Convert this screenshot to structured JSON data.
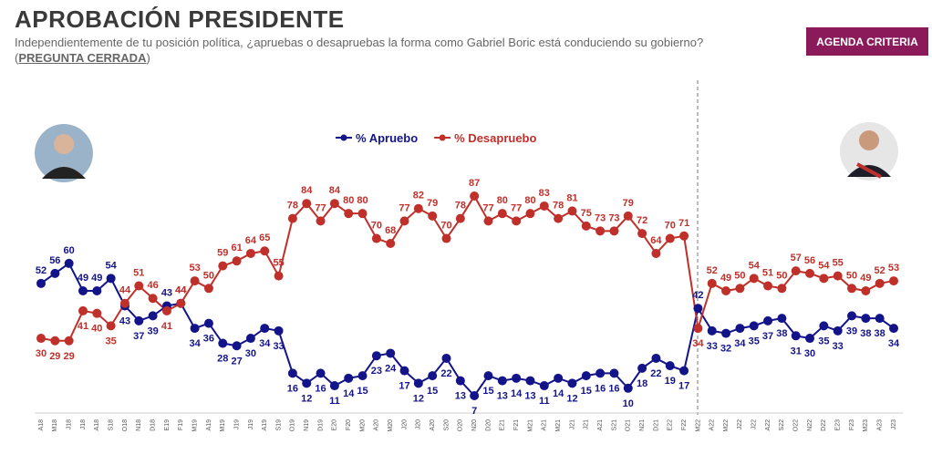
{
  "chart_data": {
    "type": "line",
    "title": "APROBACIÓN PRESIDENTE",
    "subtitle": "Independientemente de tu posición política, ¿apruebas o desapruebas la forma como Gabriel Boric está conduciendo su gobierno? (",
    "subtitle_emphasis": "PREGUNTA CERRADA",
    "subtitle_end": ")",
    "categories": [
      "A18",
      "M18",
      "J18",
      "J18",
      "A18",
      "S18",
      "O18",
      "N18",
      "D18",
      "E19",
      "F19",
      "M19",
      "A19",
      "M19",
      "J19",
      "J19",
      "A19",
      "S19",
      "O19",
      "N19",
      "D19",
      "E20",
      "F20",
      "M20",
      "A20",
      "M20",
      "J20",
      "J20",
      "A20",
      "S20",
      "O20",
      "N20",
      "D20",
      "E21",
      "F21",
      "M21",
      "A21",
      "M21",
      "J21",
      "J21",
      "A21",
      "S21",
      "O21",
      "N21",
      "D21",
      "E22",
      "F22",
      "M22",
      "A22",
      "M22",
      "J22",
      "J22",
      "A22",
      "S22",
      "O22",
      "N22",
      "D22",
      "E23",
      "F23",
      "M23",
      "A23",
      "J23"
    ],
    "series": [
      {
        "name": "% Apruebo",
        "color": "#14148a",
        "values": [
          52,
          56,
          60,
          49,
          49,
          54,
          43,
          37,
          39,
          43,
          44,
          34,
          36,
          28,
          27,
          30,
          34,
          33,
          16,
          12,
          16,
          11,
          14,
          15,
          23,
          24,
          17,
          12,
          15,
          22,
          13,
          7,
          15,
          13,
          14,
          13,
          11,
          14,
          12,
          15,
          16,
          16,
          10,
          18,
          22,
          19,
          17,
          42,
          33,
          32,
          34,
          35,
          37,
          38,
          31,
          30,
          35,
          33,
          39,
          38,
          38,
          34
        ]
      },
      {
        "name": "% Desapruebo",
        "color": "#c0302b",
        "values": [
          30,
          29,
          29,
          41,
          40,
          35,
          44,
          51,
          46,
          41,
          44,
          53,
          50,
          59,
          61,
          64,
          65,
          55,
          78,
          84,
          77,
          84,
          80,
          80,
          70,
          68,
          77,
          82,
          79,
          70,
          78,
          87,
          77,
          80,
          77,
          80,
          83,
          78,
          81,
          75,
          73,
          73,
          79,
          72,
          64,
          70,
          71,
          34,
          52,
          49,
          50,
          54,
          51,
          50,
          57,
          56,
          54,
          55,
          50,
          49,
          52,
          53
        ]
      }
    ]
  },
  "button": "AGENDA CRITERIA"
}
